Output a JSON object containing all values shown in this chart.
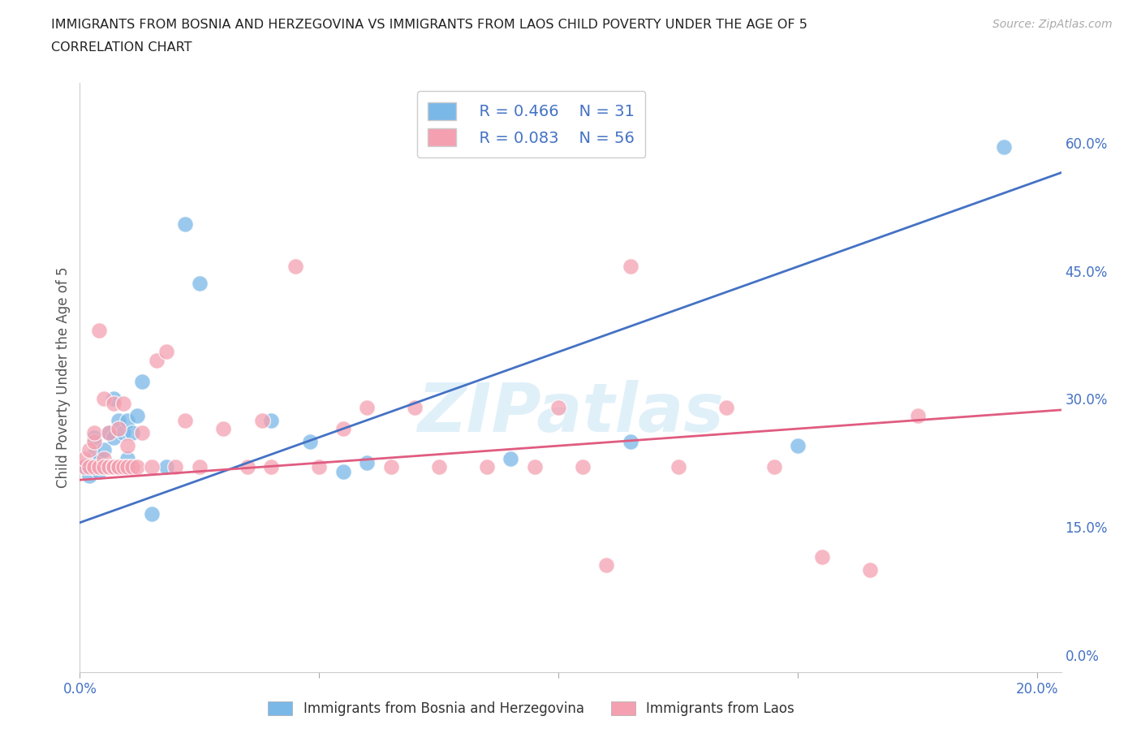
{
  "title_line1": "IMMIGRANTS FROM BOSNIA AND HERZEGOVINA VS IMMIGRANTS FROM LAOS CHILD POVERTY UNDER THE AGE OF 5",
  "title_line2": "CORRELATION CHART",
  "source": "Source: ZipAtlas.com",
  "ylabel": "Child Poverty Under the Age of 5",
  "xlim": [
    0.0,
    0.205
  ],
  "ylim": [
    -0.02,
    0.67
  ],
  "yticks": [
    0.0,
    0.15,
    0.3,
    0.45,
    0.6
  ],
  "ytick_labels": [
    "0.0%",
    "15.0%",
    "30.0%",
    "45.0%",
    "60.0%"
  ],
  "xticks": [
    0.0,
    0.05,
    0.1,
    0.15,
    0.2
  ],
  "xtick_labels": [
    "0.0%",
    "",
    "",
    "",
    "20.0%"
  ],
  "watermark": "ZIPatlas",
  "legend_R1": "R = 0.466",
  "legend_N1": "N = 31",
  "legend_R2": "R = 0.083",
  "legend_N2": "N = 56",
  "color_bosnia": "#7ab8e8",
  "color_laos": "#f4a0b0",
  "color_line_bosnia": "#4472c4",
  "color_line_laos": "#e05c80",
  "background_color": "#ffffff",
  "grid_color": "#d0d0d0",
  "bosnia_x": [
    0.001,
    0.002,
    0.003,
    0.003,
    0.004,
    0.004,
    0.005,
    0.005,
    0.006,
    0.006,
    0.007,
    0.007,
    0.008,
    0.009,
    0.01,
    0.01,
    0.011,
    0.012,
    0.013,
    0.015,
    0.018,
    0.022,
    0.025,
    0.04,
    0.048,
    0.055,
    0.06,
    0.09,
    0.115,
    0.15,
    0.193
  ],
  "bosnia_y": [
    0.22,
    0.21,
    0.235,
    0.255,
    0.215,
    0.23,
    0.22,
    0.24,
    0.26,
    0.22,
    0.3,
    0.255,
    0.275,
    0.26,
    0.23,
    0.275,
    0.26,
    0.28,
    0.32,
    0.165,
    0.22,
    0.505,
    0.435,
    0.275,
    0.25,
    0.215,
    0.225,
    0.23,
    0.25,
    0.245,
    0.595
  ],
  "laos_x": [
    0.001,
    0.001,
    0.002,
    0.002,
    0.003,
    0.003,
    0.003,
    0.004,
    0.004,
    0.005,
    0.005,
    0.005,
    0.006,
    0.006,
    0.007,
    0.007,
    0.007,
    0.008,
    0.008,
    0.008,
    0.009,
    0.009,
    0.01,
    0.01,
    0.011,
    0.012,
    0.013,
    0.015,
    0.016,
    0.018,
    0.02,
    0.022,
    0.025,
    0.03,
    0.035,
    0.038,
    0.04,
    0.045,
    0.05,
    0.055,
    0.06,
    0.065,
    0.07,
    0.075,
    0.085,
    0.095,
    0.1,
    0.105,
    0.11,
    0.115,
    0.125,
    0.135,
    0.145,
    0.155,
    0.165,
    0.175
  ],
  "laos_y": [
    0.22,
    0.23,
    0.24,
    0.22,
    0.25,
    0.22,
    0.26,
    0.38,
    0.22,
    0.23,
    0.3,
    0.22,
    0.26,
    0.22,
    0.22,
    0.295,
    0.22,
    0.22,
    0.265,
    0.22,
    0.22,
    0.295,
    0.22,
    0.245,
    0.22,
    0.22,
    0.26,
    0.22,
    0.345,
    0.355,
    0.22,
    0.275,
    0.22,
    0.265,
    0.22,
    0.275,
    0.22,
    0.455,
    0.22,
    0.265,
    0.29,
    0.22,
    0.29,
    0.22,
    0.22,
    0.22,
    0.29,
    0.22,
    0.105,
    0.455,
    0.22,
    0.29,
    0.22,
    0.115,
    0.1,
    0.28
  ]
}
